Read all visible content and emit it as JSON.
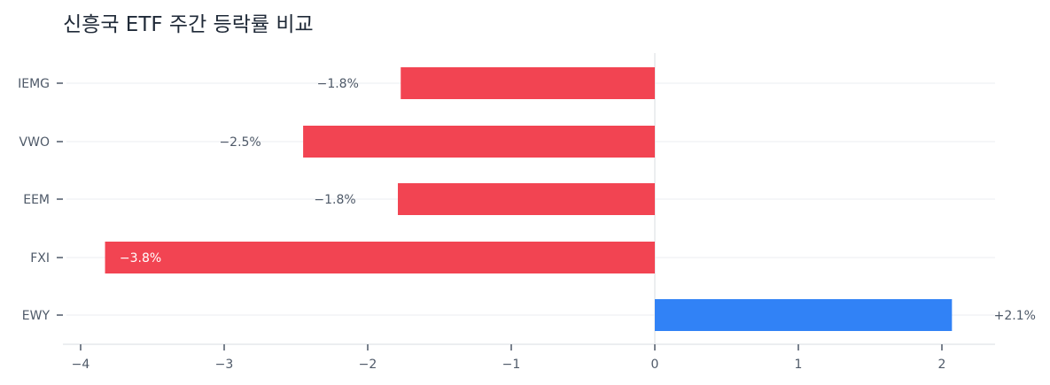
{
  "chart_data": {
    "type": "bar",
    "orientation": "horizontal",
    "title": "신흥국 ETF 주간 등락률 비교",
    "categories": [
      "IEMG",
      "VWO",
      "EEM",
      "FXI",
      "EWY"
    ],
    "values": [
      -1.77,
      -2.45,
      -1.79,
      -3.83,
      2.07
    ],
    "data_labels": [
      "−1.8%",
      "−2.5%",
      "−1.8%",
      "−3.8%",
      "+2.1%"
    ],
    "xlim": [
      -4.1,
      2.35
    ],
    "xticks": [
      -4,
      -3,
      -2,
      -1,
      0,
      1,
      2
    ],
    "xtick_labels": [
      "−4",
      "−3",
      "−2",
      "−1",
      "0",
      "1",
      "2"
    ],
    "grid": true,
    "colors": {
      "negative": "#f24452",
      "positive": "#3182f6",
      "text": "#4e5968",
      "grid": "#f2f4f6",
      "axis": "#e5e8eb"
    }
  }
}
